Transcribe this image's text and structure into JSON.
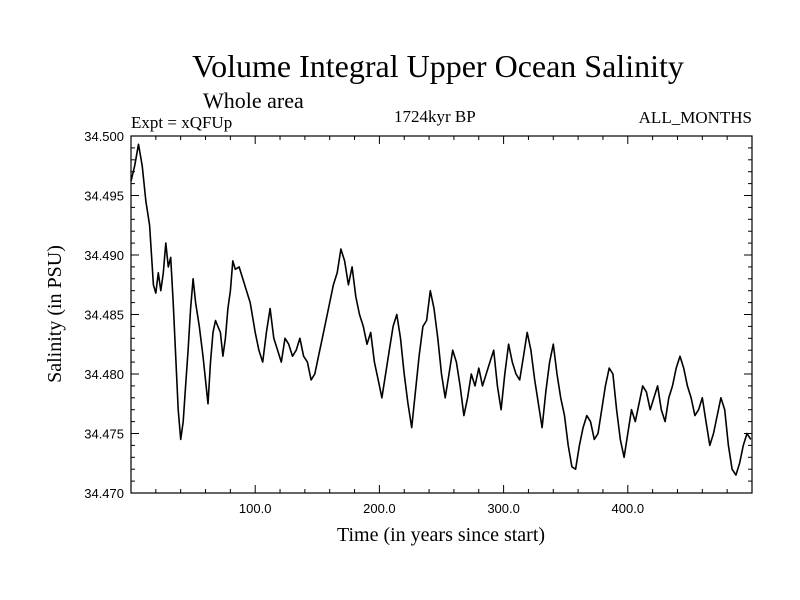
{
  "chart_data": {
    "type": "line",
    "title": "Volume Integral Upper Ocean Salinity",
    "subtitle": "Whole area",
    "experiment": "Expt = xQFUp",
    "period": "1724kyr BP",
    "months": "ALL_MONTHS",
    "xlabel": "Time (in years since start)",
    "ylabel": "Salinity (in PSU)",
    "xlim": [
      0,
      500
    ],
    "ylim": [
      34.47,
      34.5
    ],
    "xticks": [
      100,
      200,
      300,
      400
    ],
    "xtick_labels": [
      "100.0",
      "200.0",
      "300.0",
      "400.0"
    ],
    "yticks": [
      34.47,
      34.475,
      34.48,
      34.485,
      34.49,
      34.495,
      34.5
    ],
    "ytick_labels": [
      "34.470",
      "34.475",
      "34.480",
      "34.485",
      "34.490",
      "34.495",
      "34.500"
    ],
    "grid": false,
    "series": [
      {
        "name": "salinity",
        "color": "#000000",
        "x": [
          0,
          3,
          6,
          9,
          12,
          15,
          18,
          20,
          22,
          24,
          26,
          28,
          30,
          32,
          34,
          36,
          38,
          40,
          42,
          44,
          46,
          48,
          50,
          52,
          55,
          58,
          60,
          62,
          64,
          66,
          68,
          70,
          72,
          74,
          76,
          78,
          80,
          82,
          84,
          87,
          90,
          93,
          96,
          100,
          103,
          106,
          109,
          112,
          115,
          118,
          121,
          124,
          127,
          130,
          133,
          136,
          139,
          142,
          145,
          148,
          151,
          154,
          157,
          160,
          163,
          166,
          169,
          172,
          175,
          178,
          181,
          184,
          187,
          190,
          193,
          196,
          199,
          202,
          205,
          208,
          211,
          214,
          217,
          220,
          223,
          226,
          229,
          232,
          235,
          238,
          241,
          244,
          247,
          250,
          253,
          256,
          259,
          262,
          265,
          268,
          271,
          274,
          277,
          280,
          283,
          286,
          289,
          292,
          295,
          298,
          301,
          304,
          307,
          310,
          313,
          316,
          319,
          322,
          325,
          328,
          331,
          334,
          337,
          340,
          343,
          346,
          349,
          352,
          355,
          358,
          361,
          364,
          367,
          370,
          373,
          376,
          379,
          382,
          385,
          388,
          391,
          394,
          397,
          400,
          403,
          406,
          409,
          412,
          415,
          418,
          421,
          424,
          427,
          430,
          433,
          436,
          439,
          442,
          445,
          448,
          451,
          454,
          457,
          460,
          463,
          466,
          469,
          472,
          475,
          478,
          481,
          484,
          487,
          490,
          493,
          496,
          499
        ],
        "values": [
          34.4962,
          34.4975,
          34.4993,
          34.4975,
          34.4945,
          34.4925,
          34.4875,
          34.4868,
          34.4885,
          34.487,
          34.4885,
          34.491,
          34.489,
          34.4898,
          34.486,
          34.4815,
          34.477,
          34.4745,
          34.476,
          34.479,
          34.482,
          34.4855,
          34.488,
          34.486,
          34.484,
          34.4815,
          34.4795,
          34.4775,
          34.481,
          34.4835,
          34.4845,
          34.484,
          34.4835,
          34.4815,
          34.483,
          34.4855,
          34.487,
          34.4895,
          34.4888,
          34.489,
          34.488,
          34.487,
          34.486,
          34.4835,
          34.482,
          34.481,
          34.4835,
          34.4855,
          34.483,
          34.482,
          34.481,
          34.483,
          34.4825,
          34.4815,
          34.482,
          34.483,
          34.4815,
          34.481,
          34.4795,
          34.48,
          34.4815,
          34.483,
          34.4845,
          34.486,
          34.4875,
          34.4885,
          34.4905,
          34.4895,
          34.4875,
          34.489,
          34.4865,
          34.485,
          34.484,
          34.4825,
          34.4835,
          34.481,
          34.4795,
          34.478,
          34.48,
          34.482,
          34.484,
          34.485,
          34.483,
          34.48,
          34.4775,
          34.4755,
          34.4785,
          34.4815,
          34.484,
          34.4845,
          34.487,
          34.4855,
          34.483,
          34.48,
          34.478,
          34.48,
          34.482,
          34.481,
          34.479,
          34.4765,
          34.478,
          34.48,
          34.479,
          34.4805,
          34.479,
          34.48,
          34.481,
          34.482,
          34.479,
          34.477,
          34.48,
          34.4825,
          34.481,
          34.48,
          34.4795,
          34.4815,
          34.4835,
          34.482,
          34.4795,
          34.4775,
          34.4755,
          34.4785,
          34.481,
          34.4825,
          34.48,
          34.478,
          34.4765,
          34.474,
          34.4722,
          34.472,
          34.474,
          34.4755,
          34.4765,
          34.476,
          34.4745,
          34.475,
          34.477,
          34.479,
          34.4805,
          34.48,
          34.477,
          34.4745,
          34.473,
          34.475,
          34.477,
          34.476,
          34.4775,
          34.479,
          34.4785,
          34.477,
          34.478,
          34.479,
          34.477,
          34.476,
          34.478,
          34.479,
          34.4805,
          34.4815,
          34.4805,
          34.479,
          34.478,
          34.4765,
          34.477,
          34.478,
          34.476,
          34.474,
          34.475,
          34.4765,
          34.478,
          34.477,
          34.474,
          34.472,
          34.4715,
          34.4725,
          34.474,
          34.475,
          34.4745
        ]
      }
    ]
  }
}
